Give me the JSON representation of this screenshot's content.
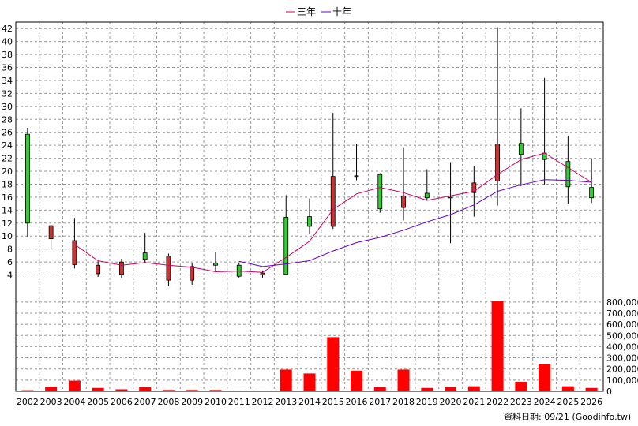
{
  "chart_data": {
    "type": "candlestick",
    "legend": {
      "position": "top-center",
      "items": [
        {
          "name": "三年",
          "color": "#cc0066"
        },
        {
          "name": "十年",
          "color": "#6600cc"
        }
      ]
    },
    "categories": [
      "2002",
      "2003",
      "2004",
      "2005",
      "2006",
      "2007",
      "2008",
      "2009",
      "2010",
      "2011",
      "2012",
      "2013",
      "2014",
      "2015",
      "2016",
      "2017",
      "2018",
      "2019",
      "2020",
      "2021",
      "2022",
      "2023",
      "2024",
      "2025",
      "2026"
    ],
    "price_axis": {
      "ylim": [
        2,
        43
      ],
      "ticks": [
        4,
        6,
        8,
        10,
        12,
        14,
        16,
        18,
        20,
        22,
        24,
        26,
        28,
        30,
        32,
        34,
        36,
        38,
        40,
        42
      ],
      "tick_labels": [
        "4",
        "6",
        "8",
        "10",
        "12",
        "14",
        "16",
        "18",
        "20",
        "22",
        "24",
        "26",
        "28",
        "30",
        "32",
        "34",
        "36",
        "38",
        "40",
        "42"
      ],
      "position": "left"
    },
    "volume_axis": {
      "ylim": [
        0,
        820000
      ],
      "ticks": [
        0,
        100000,
        200000,
        300000,
        400000,
        500000,
        600000,
        700000,
        800000
      ],
      "tick_labels": [
        "0",
        "100,000",
        "200,000",
        "300,000",
        "400,000",
        "500,000",
        "600,000",
        "700,000",
        "800,000"
      ],
      "position": "right"
    },
    "candles": [
      {
        "open": 12.0,
        "close": 25.7,
        "high": 26.7,
        "low": 9.8
      },
      {
        "open": 11.6,
        "close": 9.6,
        "high": 11.7,
        "low": 7.9
      },
      {
        "open": 9.3,
        "close": 5.6,
        "high": 12.8,
        "low": 5.0
      },
      {
        "open": 5.5,
        "close": 4.2,
        "high": 6.1,
        "low": 3.7
      },
      {
        "open": 6.0,
        "close": 4.1,
        "high": 6.5,
        "low": 3.5
      },
      {
        "open": 6.4,
        "close": 7.4,
        "high": 10.5,
        "low": 5.8
      },
      {
        "open": 6.9,
        "close": 3.2,
        "high": 7.3,
        "low": 2.3
      },
      {
        "open": 5.3,
        "close": 3.2,
        "high": 5.8,
        "low": 2.5
      },
      {
        "open": 5.5,
        "close": 5.8,
        "high": 7.6,
        "low": 4.5
      },
      {
        "open": 3.8,
        "close": 5.5,
        "high": 5.9,
        "low": 3.6
      },
      {
        "open": 4.3,
        "close": 4.0,
        "high": 4.7,
        "low": 3.6
      },
      {
        "open": 4.1,
        "close": 12.9,
        "high": 16.3,
        "low": 4.0
      },
      {
        "open": 11.5,
        "close": 13.0,
        "high": 15.8,
        "low": 10.3
      },
      {
        "open": 19.2,
        "close": 11.5,
        "high": 29.0,
        "low": 11.1
      },
      {
        "open": 19.2,
        "close": 19.3,
        "high": 24.2,
        "low": 18.6
      },
      {
        "open": 14.2,
        "close": 19.5,
        "high": 19.7,
        "low": 13.6
      },
      {
        "open": 16.2,
        "close": 14.4,
        "high": 23.7,
        "low": 12.4
      },
      {
        "open": 15.9,
        "close": 16.6,
        "high": 20.3,
        "low": 15.6
      },
      {
        "open": 16.0,
        "close": 16.0,
        "high": 21.4,
        "low": 8.9
      },
      {
        "open": 18.2,
        "close": 16.7,
        "high": 20.8,
        "low": 13.0
      },
      {
        "open": 24.2,
        "close": 18.5,
        "high": 42.2,
        "low": 14.7
      },
      {
        "open": 22.6,
        "close": 24.3,
        "high": 29.7,
        "low": 17.7
      },
      {
        "open": 21.8,
        "close": 22.8,
        "high": 34.4,
        "low": 17.9
      },
      {
        "open": 17.6,
        "close": 21.5,
        "high": 25.5,
        "low": 15.0
      },
      {
        "open": 15.9,
        "close": 17.5,
        "high": 22.0,
        "low": 15.1
      }
    ],
    "series": [
      {
        "name": "三年",
        "color": "#cc0066",
        "values": [
          null,
          null,
          8.7,
          6.2,
          5.5,
          5.9,
          5.5,
          5.2,
          4.5,
          4.6,
          4.4,
          6.7,
          9.2,
          14.1,
          16.5,
          17.5,
          16.7,
          15.5,
          16.2,
          16.9,
          19.5,
          21.8,
          22.8,
          null,
          18.3
        ]
      },
      {
        "name": "十年",
        "color": "#6600cc",
        "values": [
          null,
          null,
          null,
          null,
          null,
          null,
          null,
          null,
          null,
          6.1,
          5.3,
          5.7,
          6.2,
          7.7,
          9.0,
          9.8,
          10.9,
          12.2,
          13.3,
          14.8,
          16.9,
          17.9,
          18.7,
          18.6,
          18.3
        ]
      }
    ],
    "volume": [
      10000,
      40000,
      95000,
      30000,
      18000,
      38000,
      12000,
      12000,
      12000,
      6000,
      6000,
      195000,
      160000,
      485000,
      185000,
      38000,
      195000,
      30000,
      38000,
      45000,
      810000,
      85000,
      245000,
      45000,
      30000
    ],
    "colors": {
      "up_candle": "#33cc33",
      "down_candle": "#cc3333",
      "volume_bar": "#ff0000",
      "grid": "#999999",
      "frame": "#000000"
    },
    "grid": true,
    "source_note": "資料日期: 09/21  (Goodinfo.tw)"
  }
}
